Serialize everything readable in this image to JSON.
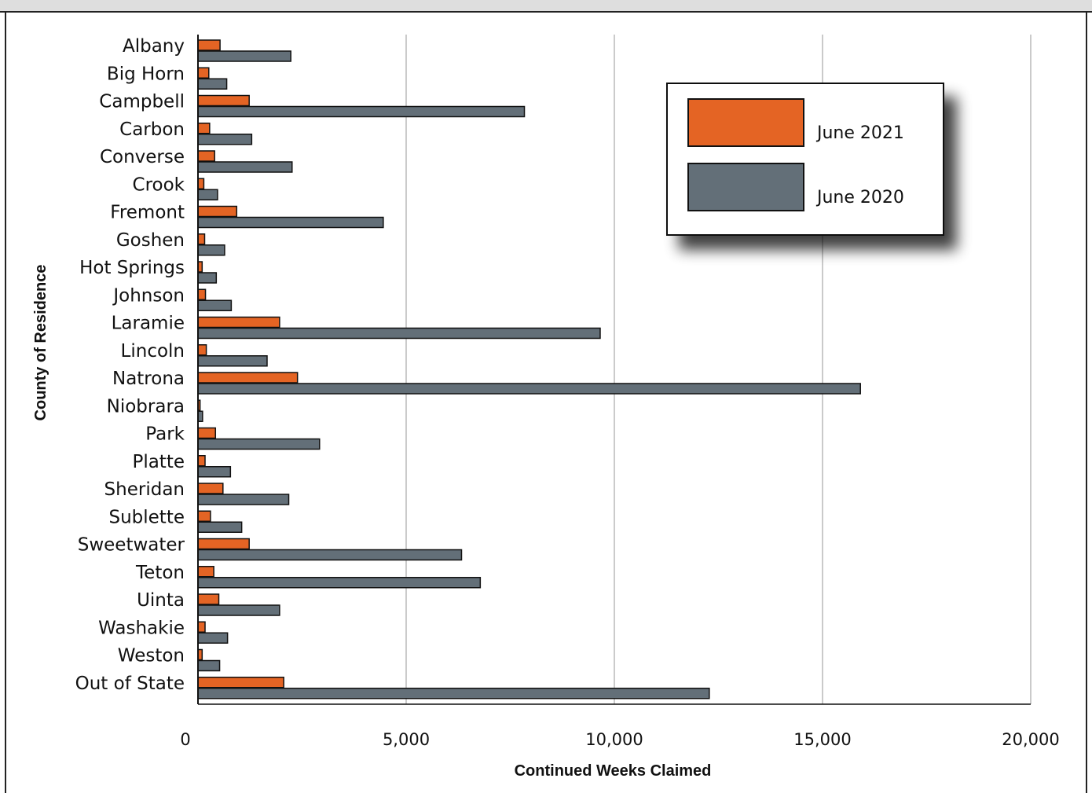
{
  "chart_data": {
    "type": "bar",
    "orientation": "horizontal",
    "xlabel": "Continued Weeks Claimed",
    "ylabel": "County of Residence",
    "xlim": [
      0,
      20000
    ],
    "x_ticks": [
      0,
      5000,
      10000,
      15000,
      20000
    ],
    "x_tick_labels": [
      "0",
      "5,000",
      "10,000",
      "15,000",
      "20,000"
    ],
    "grid": "vertical",
    "legend_position": "top-right",
    "categories": [
      "Albany",
      "Big Horn",
      "Campbell",
      "Carbon",
      "Converse",
      "Crook",
      "Fremont",
      "Goshen",
      "Hot Springs",
      "Johnson",
      "Laramie",
      "Lincoln",
      "Natrona",
      "Niobrara",
      "Park",
      "Platte",
      "Sheridan",
      "Sublette",
      "Sweetwater",
      "Teton",
      "Uinta",
      "Washakie",
      "Weston",
      "Out of State"
    ],
    "series": [
      {
        "name": "June 2021",
        "color": "#e46424",
        "values": [
          530,
          260,
          1230,
          280,
          400,
          140,
          930,
          160,
          100,
          180,
          1960,
          200,
          2390,
          50,
          420,
          170,
          600,
          300,
          1230,
          380,
          500,
          170,
          100,
          2060
        ]
      },
      {
        "name": "June 2020",
        "color": "#636f78",
        "values": [
          2230,
          690,
          7840,
          1290,
          2260,
          470,
          4450,
          640,
          440,
          800,
          9660,
          1660,
          15910,
          110,
          2920,
          780,
          2180,
          1050,
          6330,
          6780,
          1960,
          710,
          520,
          12280
        ]
      }
    ]
  }
}
